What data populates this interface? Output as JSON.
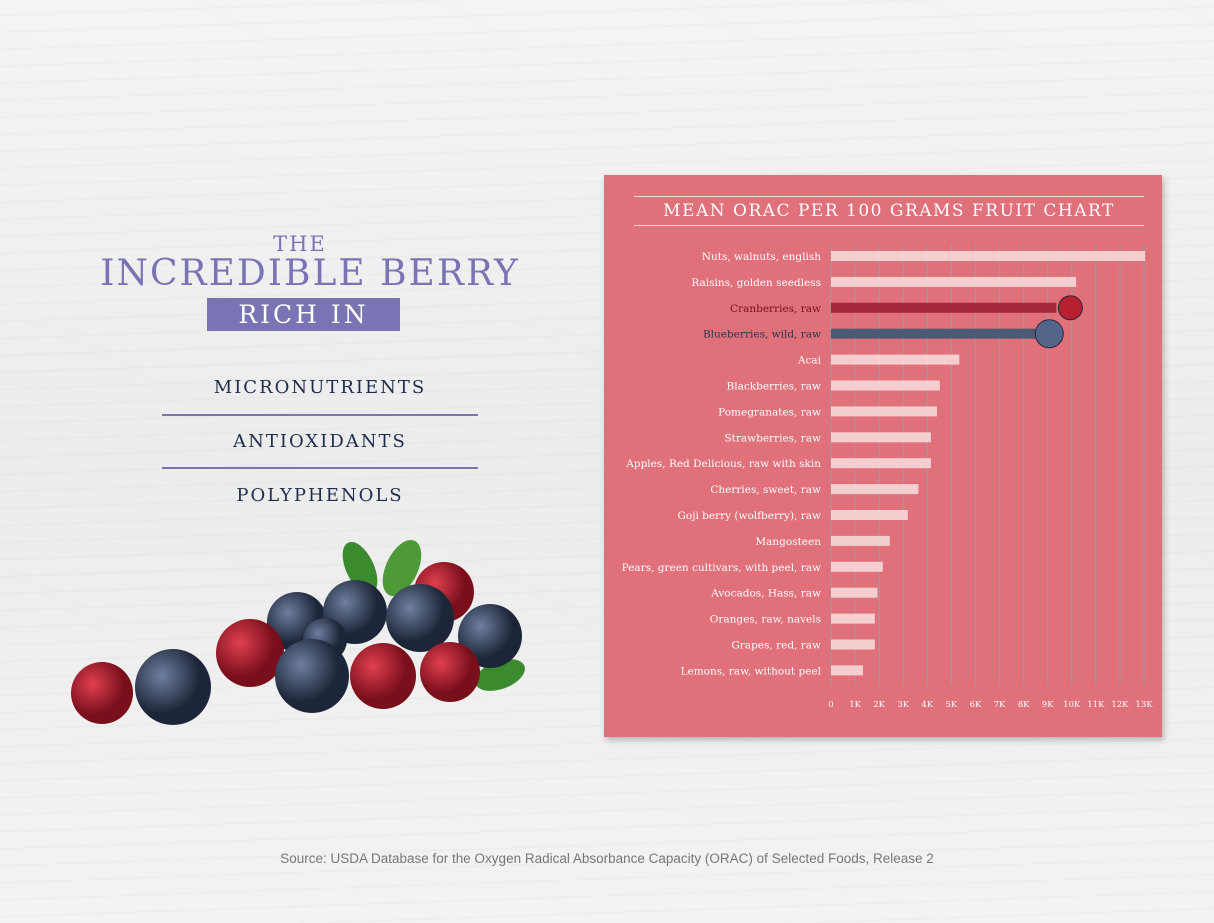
{
  "left": {
    "the": "THE",
    "headline": "INCREDIBLE BERRY",
    "rich_in": "RICH IN",
    "items": [
      "MICRONUTRIENTS",
      "ANTIOXIDANTS",
      "POLYPHENOLS"
    ]
  },
  "source": "Source: USDA Database for the Oxygen Radical Absorbance Capacity (ORAC) of Selected Foods, Release 2",
  "colors": {
    "panel": "#e0707a",
    "bar": "#f5cfcf",
    "cranberry": "#a3283a",
    "blueberry": "#4a5a74",
    "accent": "#7b74b4"
  },
  "chart_data": {
    "type": "bar",
    "orientation": "horizontal",
    "title": "MEAN ORAC PER 100 GRAMS FRUIT CHART",
    "categories": [
      "Nuts, walnuts, english",
      "Raisins, golden seedless",
      "Cranberries, raw",
      "Blueberries, wild, raw",
      "Acai",
      "Blackberries, raw",
      "Pomegranates, raw",
      "Strawberries, raw",
      "Apples, Red Delicious, raw with skin",
      "Cherries, sweet, raw",
      "Goji berry (wolfberry), raw",
      "Mangosteen",
      "Pears, green cultivars, with peel, raw",
      "Avocados, Hass, raw",
      "Oranges, raw, navels",
      "Grapes, red, raw",
      "Lemons, raw, without peel"
    ],
    "values": [
      13050,
      10180,
      9360,
      8900,
      5330,
      4520,
      4400,
      4150,
      4150,
      3630,
      3190,
      2440,
      2150,
      1930,
      1820,
      1820,
      1330
    ],
    "highlight": {
      "Cranberries, raw": "#a3283a",
      "Blueberries, wild, raw": "#4a5a74"
    },
    "xlim": [
      0,
      13000
    ],
    "xticks": [
      "0",
      "1K",
      "2K",
      "3K",
      "4K",
      "5K",
      "6K",
      "7K",
      "8K",
      "9K",
      "10K",
      "11K",
      "12K",
      "13K"
    ],
    "grid": true
  }
}
